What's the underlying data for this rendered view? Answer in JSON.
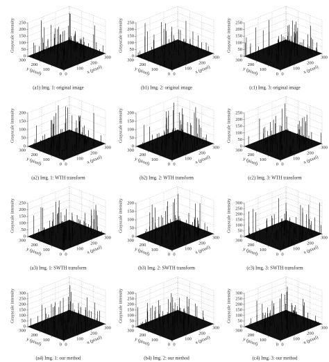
{
  "panels": [
    {
      "caption": "(a1) Img. 1: original image",
      "z_label": "Grayscale intensity",
      "x_label": "x (pixel)",
      "y_label": "y (pixel)",
      "z_ticks": [
        0,
        50,
        100,
        150,
        200,
        250
      ],
      "x_ticks": [
        0,
        100,
        200,
        300
      ],
      "y_ticks": [
        0,
        100,
        200,
        300
      ]
    },
    {
      "caption": "(b1) Img. 2: original image",
      "z_label": "Grayscale intensity",
      "x_label": "x (pixel)",
      "y_label": "y (pixel)",
      "z_ticks": [
        0,
        50,
        100,
        150,
        200,
        250
      ],
      "x_ticks": [
        0,
        100,
        200,
        300
      ],
      "y_ticks": [
        0,
        100,
        200,
        300
      ]
    },
    {
      "caption": "(c1) Img. 3: original image",
      "z_label": "Grayscale intensity",
      "x_label": "x (pixel)",
      "y_label": "y (pixel)",
      "z_ticks": [
        0,
        50,
        100,
        150,
        200,
        250
      ],
      "x_ticks": [
        0,
        100,
        200,
        300
      ],
      "y_ticks": [
        0,
        100,
        200,
        300
      ]
    },
    {
      "caption": "(a2) Img. 1: WTH transform",
      "z_label": "Grayscale intensity",
      "x_label": "x (pixel)",
      "y_label": "y (pixel)",
      "z_ticks": [
        0,
        50,
        100,
        150,
        200
      ],
      "x_ticks": [
        0,
        100,
        200,
        300
      ],
      "y_ticks": [
        0,
        100,
        200,
        300
      ]
    },
    {
      "caption": "(b2) Img. 2: WTH transform",
      "z_label": "Grayscale intensity",
      "x_label": "x (pixel)",
      "y_label": "y (pixel)",
      "z_ticks": [
        0,
        50,
        100,
        150,
        200
      ],
      "x_ticks": [
        0,
        100,
        200,
        300
      ],
      "y_ticks": [
        0,
        100,
        200,
        300
      ]
    },
    {
      "caption": "(c2) Img. 3: WTH transform",
      "z_label": "Grayscale intensity",
      "x_label": "x (pixel)",
      "y_label": "y (pixel)",
      "z_ticks": [
        0,
        50,
        100,
        150,
        200,
        250
      ],
      "x_ticks": [
        0,
        100,
        200,
        300
      ],
      "y_ticks": [
        0,
        100,
        200,
        300
      ]
    },
    {
      "caption": "(a3) Img. 1: SWTH transform",
      "z_label": "Grayscale intensity",
      "x_label": "x (pixel)",
      "y_label": "y (pixel)",
      "z_ticks": [
        0,
        50,
        100,
        150,
        200,
        250
      ],
      "x_ticks": [
        0,
        100,
        200,
        300
      ],
      "y_ticks": [
        0,
        100,
        200,
        300
      ]
    },
    {
      "caption": "(b3) Img. 2: SWTH transform",
      "z_label": "Grayscale intensity",
      "x_label": "x (pixel)",
      "y_label": "y (pixel)",
      "z_ticks": [
        0,
        50,
        100,
        150,
        200
      ],
      "x_ticks": [
        0,
        100,
        200,
        300
      ],
      "y_ticks": [
        0,
        100,
        200,
        300
      ]
    },
    {
      "caption": "(c3) Img. 3: SWTH transform",
      "z_label": "Grayscale intensity",
      "x_label": "x (pixel)",
      "y_label": "y (pixel)",
      "z_ticks": [
        0,
        50,
        100,
        150,
        200,
        250,
        300
      ],
      "x_ticks": [
        0,
        100,
        200,
        300
      ],
      "y_ticks": [
        0,
        100,
        200,
        300
      ]
    },
    {
      "caption": "(a4) Img. 1: our method",
      "z_label": "Grayscale intensity",
      "x_label": "x (pixel)",
      "y_label": "y (pixel)",
      "z_ticks": [
        0,
        50,
        100,
        150,
        200,
        250,
        300
      ],
      "x_ticks": [
        0,
        100,
        200,
        300
      ],
      "y_ticks": [
        0,
        100,
        200,
        300
      ]
    },
    {
      "caption": "(b4) Img. 2: our method",
      "z_label": "Grayscale intensity",
      "x_label": "x (pixel)",
      "y_label": "y (pixel)",
      "z_ticks": [
        0,
        50,
        100,
        150,
        200,
        250,
        300
      ],
      "x_ticks": [
        0,
        100,
        200,
        300
      ],
      "y_ticks": [
        0,
        100,
        200,
        300
      ]
    },
    {
      "caption": "(c4) Img. 3: our method",
      "z_label": "Grayscale intensity",
      "x_label": "x (pixel)",
      "y_label": "y (pixel)",
      "z_ticks": [
        0,
        50,
        100,
        150,
        200,
        250,
        300
      ],
      "x_ticks": [
        0,
        100,
        200,
        300
      ],
      "y_ticks": [
        0,
        100,
        200,
        300
      ]
    }
  ]
}
